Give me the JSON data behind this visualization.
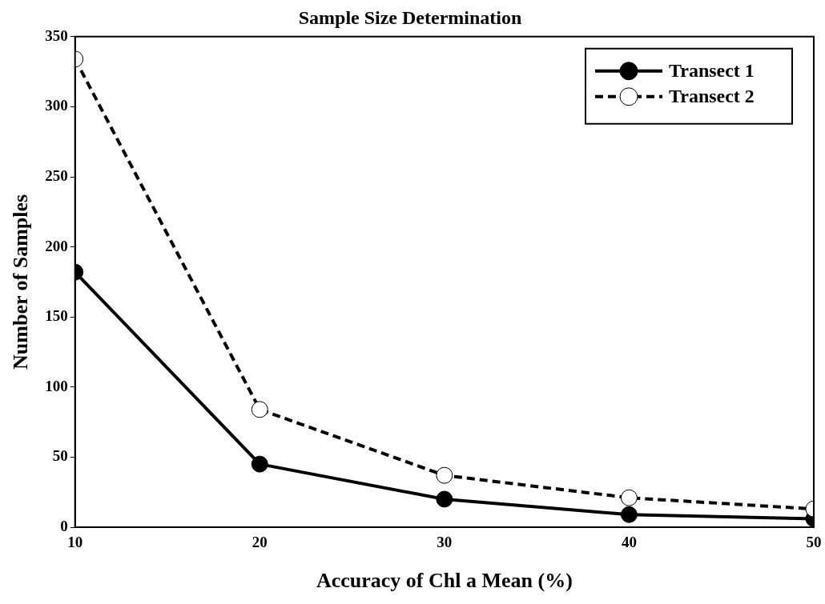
{
  "chart_data": {
    "type": "line",
    "title": "Sample Size Determination",
    "xlabel": "Accuracy of Chl a Mean (%)",
    "ylabel": "Number of Samples",
    "x": [
      10,
      20,
      30,
      40,
      50
    ],
    "series": [
      {
        "name": "Transect 1",
        "color": "#000000",
        "values": [
          182,
          45,
          20,
          9,
          6
        ],
        "line_style": "solid"
      },
      {
        "name": "Transect 2",
        "color": "#000000",
        "values": [
          334,
          84,
          37,
          21,
          13
        ],
        "line_style": "dashed"
      }
    ],
    "xlim": [
      10,
      50
    ],
    "xticks": [
      10,
      20,
      30,
      40,
      50
    ],
    "ylim": [
      0,
      350
    ],
    "yticks": [
      0,
      50,
      100,
      150,
      200,
      250,
      300,
      350
    ],
    "grid": false,
    "legend": "top right",
    "marker": "circle"
  }
}
